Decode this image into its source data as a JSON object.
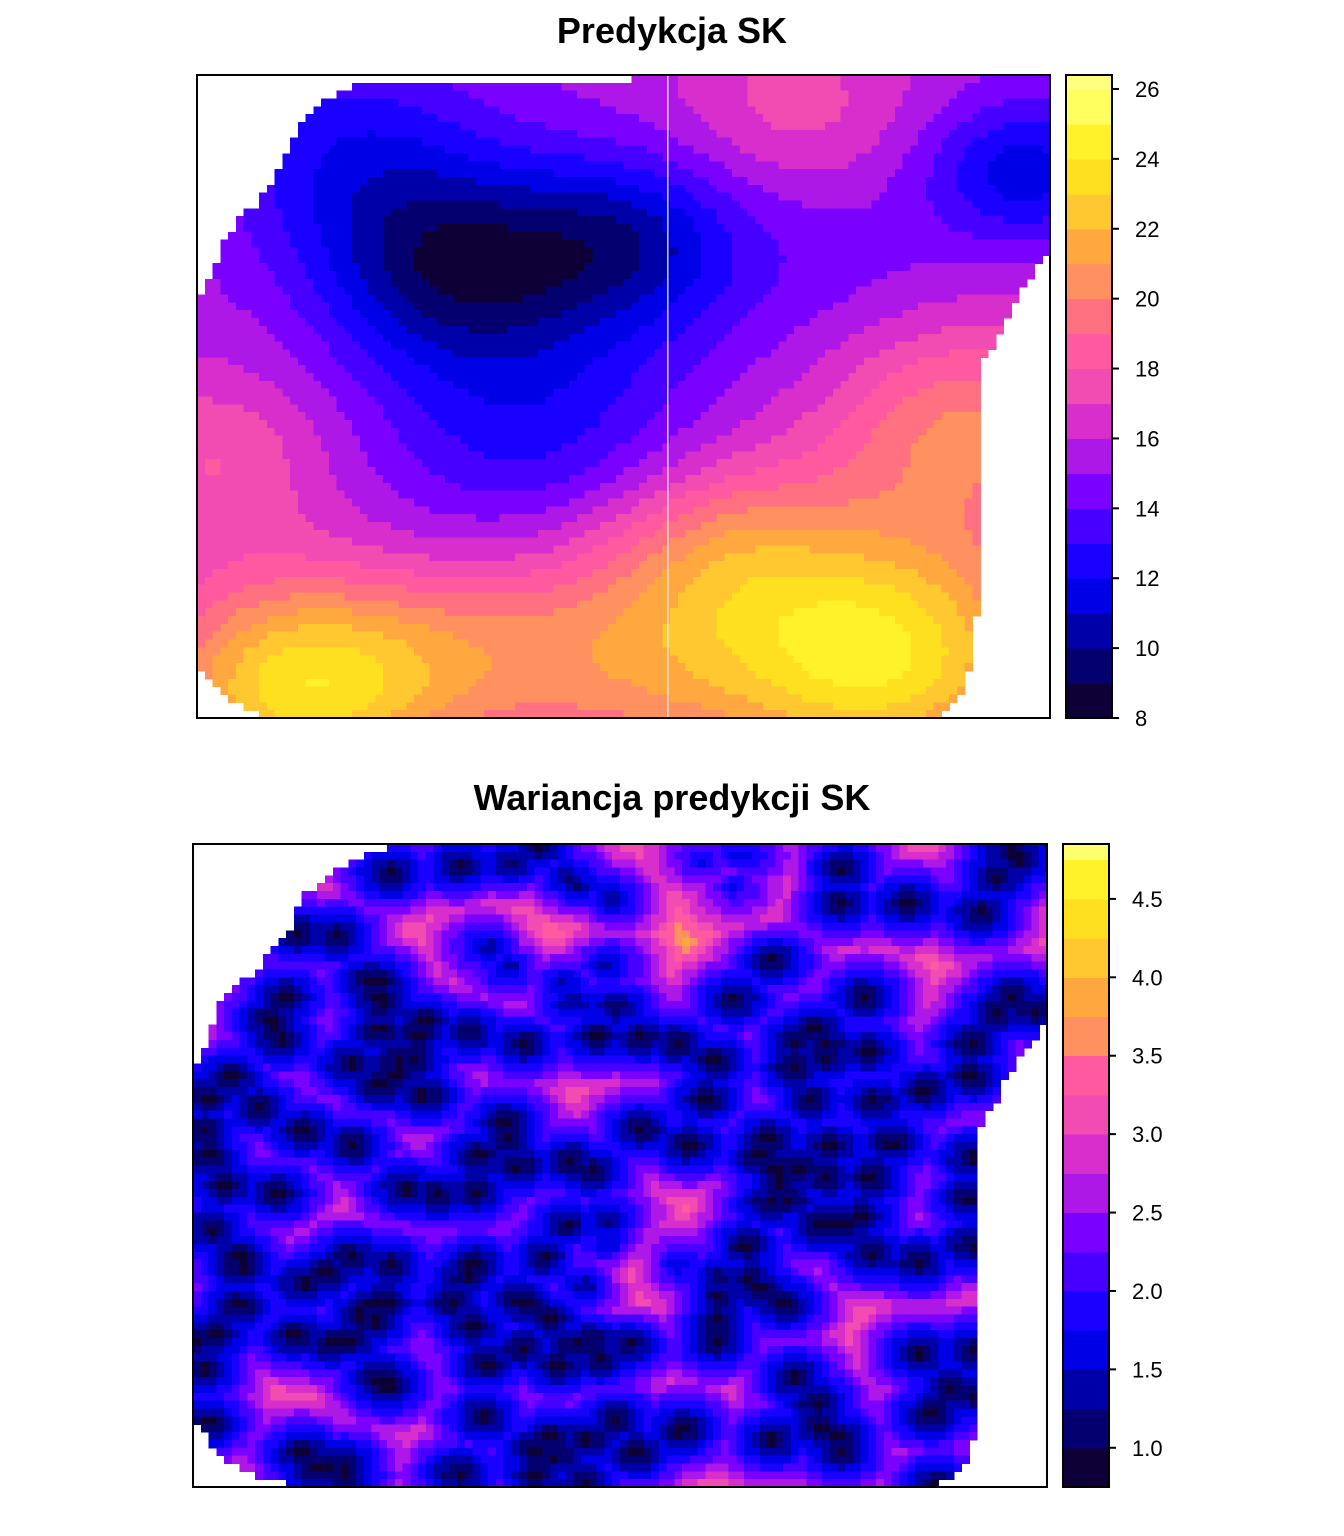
{
  "chart_data": [
    {
      "type": "heatmap",
      "title": "Predykcja SK",
      "xlabel": "",
      "ylabel": "",
      "legend": "right",
      "colorbar": {
        "ticks": [
          "8",
          "10",
          "12",
          "14",
          "16",
          "18",
          "20",
          "22",
          "24",
          "26"
        ],
        "range": [
          8,
          26.4
        ],
        "bins": [
          8,
          9,
          10,
          11,
          12,
          13,
          14,
          15,
          16,
          17,
          18,
          19,
          20,
          21,
          22,
          23,
          24,
          25,
          26,
          26.4
        ],
        "colors": [
          "#0d0036",
          "#050070",
          "#0000a8",
          "#0000e6",
          "#1a00ff",
          "#4700ff",
          "#7a00ff",
          "#ad18e6",
          "#d82ecc",
          "#f24cb3",
          "#ff5aa0",
          "#ff7080",
          "#ff9060",
          "#ffa840",
          "#ffc830",
          "#ffe020",
          "#fff22a",
          "#ffff60",
          "#ffff80"
        ]
      },
      "surface": {
        "kind": "mixture",
        "base": 15.5,
        "bumps": [
          [
            0.18,
            0.12,
            -3.0,
            0.12
          ],
          [
            0.3,
            0.3,
            -5.5,
            0.11
          ],
          [
            0.5,
            0.26,
            -4.5,
            0.1
          ],
          [
            0.4,
            0.55,
            -3.0,
            0.14
          ],
          [
            0.75,
            0.3,
            -1.0,
            0.12
          ],
          [
            0.97,
            0.15,
            -4.0,
            0.08
          ],
          [
            0.7,
            0.05,
            2.0,
            0.1
          ],
          [
            0.9,
            0.55,
            4.5,
            0.12
          ],
          [
            0.8,
            0.9,
            8.5,
            0.14
          ],
          [
            0.12,
            0.95,
            8.0,
            0.12
          ],
          [
            0.5,
            0.9,
            4.5,
            0.14
          ],
          [
            0.62,
            0.72,
            3.0,
            0.1
          ],
          [
            0.02,
            0.6,
            2.5,
            0.1
          ],
          [
            0.3,
            0.9,
            2.0,
            0.1
          ]
        ]
      }
    },
    {
      "type": "heatmap",
      "title": "Wariancja predykcji SK",
      "xlabel": "",
      "ylabel": "",
      "legend": "right",
      "colorbar": {
        "ticks": [
          "1.0",
          "1.5",
          "2.0",
          "2.5",
          "3.0",
          "3.5",
          "4.0",
          "4.5"
        ],
        "range": [
          0.75,
          4.85
        ],
        "bins": [
          0.75,
          1.0,
          1.25,
          1.5,
          1.75,
          2.0,
          2.25,
          2.5,
          2.75,
          3.0,
          3.25,
          3.5,
          3.75,
          4.0,
          4.25,
          4.5,
          4.75,
          4.85
        ],
        "colors": [
          "#0d0036",
          "#050070",
          "#0000a8",
          "#0000e6",
          "#1a00ff",
          "#4700ff",
          "#7a00ff",
          "#ad18e6",
          "#d82ecc",
          "#f24cb3",
          "#ff5aa0",
          "#ff9060",
          "#ffa840",
          "#ffc830",
          "#ffe020",
          "#fff22a",
          "#ffff70"
        ]
      },
      "surface": {
        "kind": "kriging-variance",
        "sill": 4.6,
        "nugget": 0.8,
        "range": 0.065,
        "hotspots": [
          [
            0.52,
            0.66,
            1.0,
            0.05
          ],
          [
            0.42,
            0.15,
            0.8,
            0.07
          ],
          [
            0.62,
            0.05,
            0.9,
            0.06
          ]
        ]
      }
    }
  ]
}
